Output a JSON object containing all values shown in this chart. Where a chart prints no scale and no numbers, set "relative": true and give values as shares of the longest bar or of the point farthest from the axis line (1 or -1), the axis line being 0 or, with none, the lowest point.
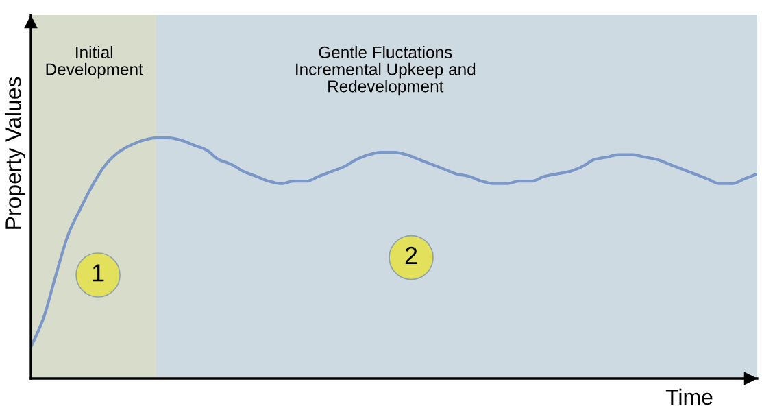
{
  "chart_data": {
    "type": "line",
    "relative": true,
    "xlabel": "Time",
    "ylabel": "Property Values",
    "categories": [
      null,
      null,
      null,
      null,
      null,
      null,
      null,
      null,
      null,
      null,
      null,
      null,
      null,
      null,
      null,
      null,
      null,
      null,
      null,
      null,
      null,
      null,
      null,
      null,
      null,
      null,
      null,
      null,
      null,
      null,
      null,
      null,
      null,
      null,
      null,
      null,
      null,
      null,
      null,
      null,
      null,
      null,
      null,
      null,
      null,
      null,
      null,
      null,
      null,
      null,
      null,
      null,
      null,
      null,
      null,
      null,
      null,
      null,
      null
    ],
    "series": [
      {
        "color": "#7b97c8",
        "values": [
          0.13,
          0.25,
          0.43,
          0.6,
          0.71,
          0.81,
          0.89,
          0.94,
          0.97,
          0.99,
          1,
          1,
          0.99,
          0.97,
          0.95,
          0.91,
          0.89,
          0.86,
          0.84,
          0.82,
          0.81,
          0.82,
          0.82,
          0.84,
          0.86,
          0.88,
          0.91,
          0.93,
          0.94,
          0.94,
          0.93,
          0.91,
          0.89,
          0.87,
          0.85,
          0.84,
          0.82,
          0.81,
          0.81,
          0.82,
          0.82,
          0.84,
          0.85,
          0.86,
          0.88,
          0.91,
          0.92,
          0.93,
          0.93,
          0.92,
          0.91,
          0.89,
          0.87,
          0.85,
          0.83,
          0.81,
          0.81,
          0.83,
          0.85
        ]
      }
    ],
    "annotations": [
      "Initial\nDevelopment",
      "Gentle Fluctations\nIncremental Upkeep and\nRedevelopment",
      "1",
      "2"
    ]
  }
}
